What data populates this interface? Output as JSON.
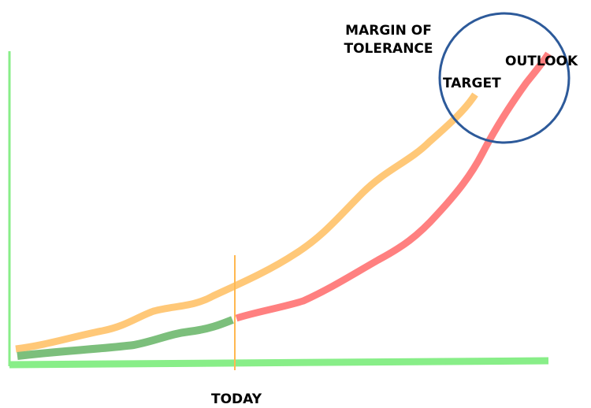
{
  "labels": {
    "margin": [
      "MARGIN OF",
      "TOLERANCE"
    ],
    "target": "TARGET",
    "outlook": "OUTLOOK",
    "today": "TODAY"
  }
}
